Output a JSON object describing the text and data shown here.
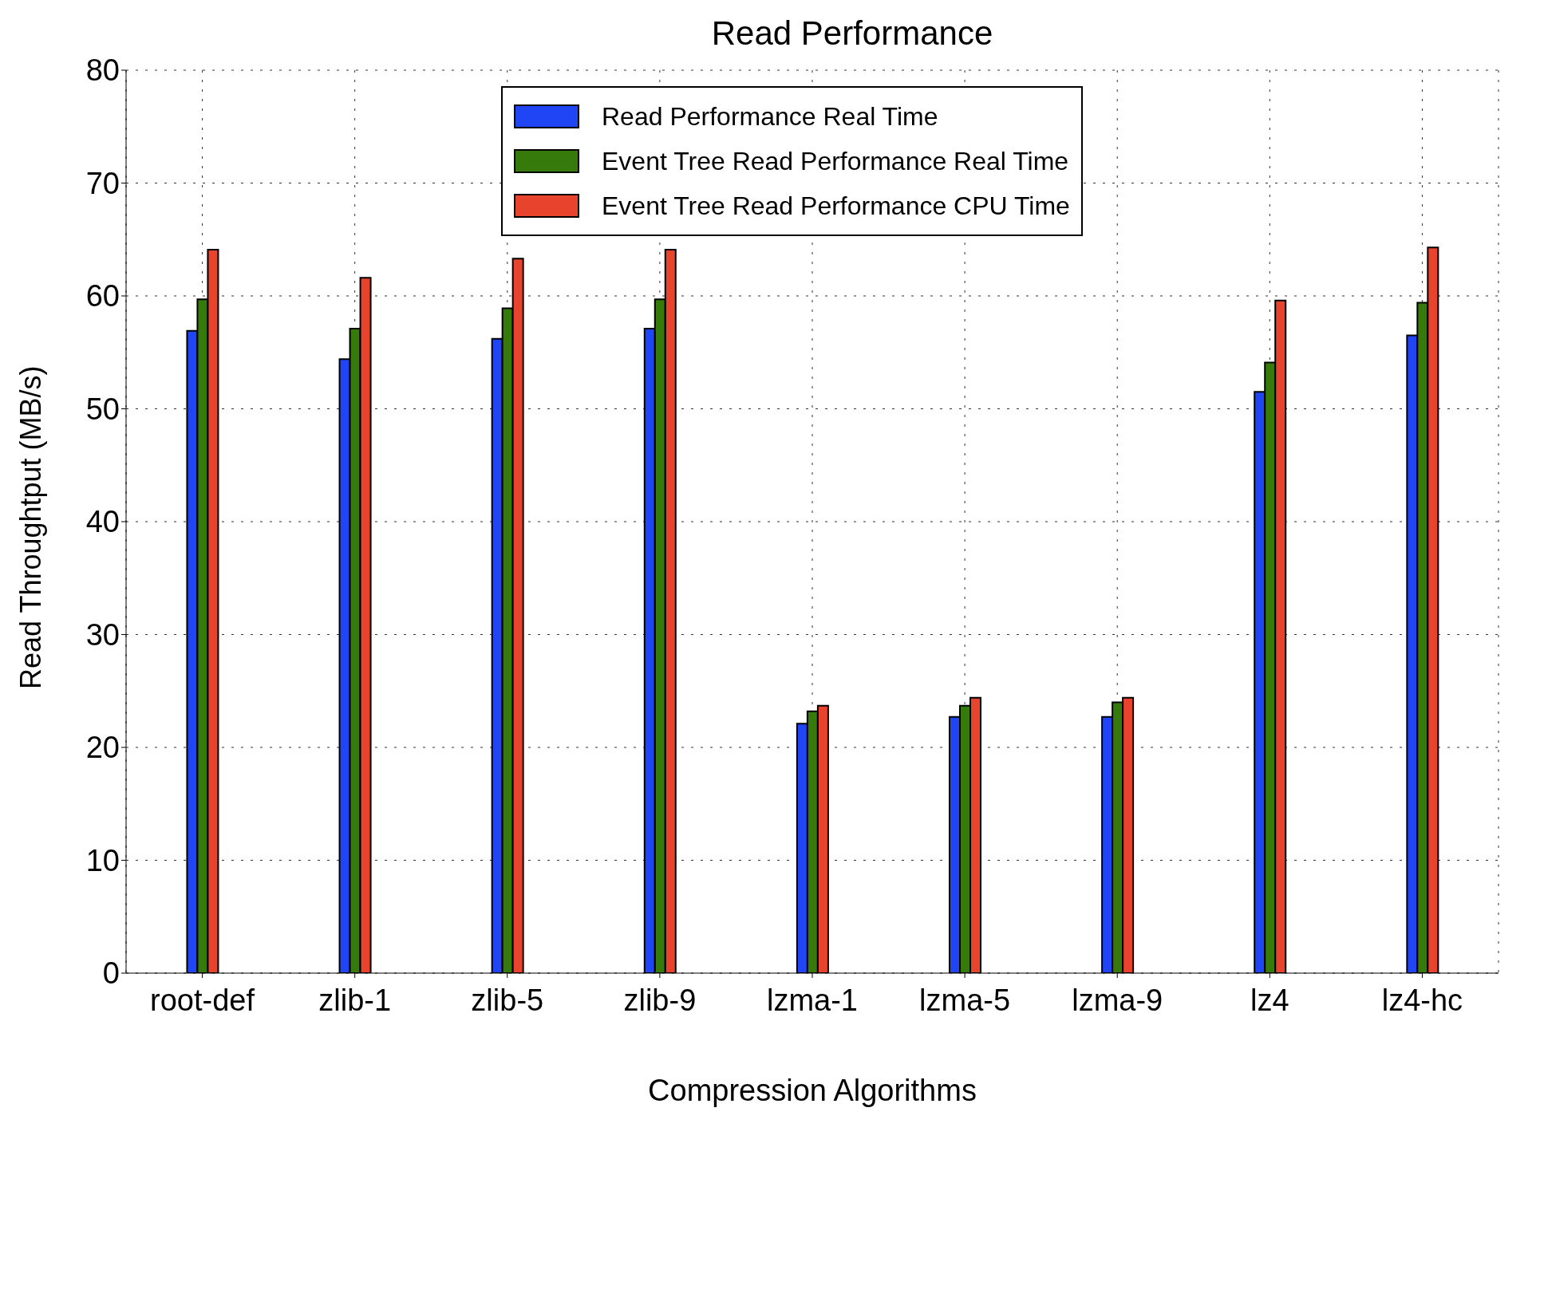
{
  "chart_data": {
    "type": "bar",
    "title": "Read Performance",
    "xlabel": "Compression Algorithms",
    "ylabel": "Read Throughtput (MB/s)",
    "categories": [
      "root-def",
      "zlib-1",
      "zlib-5",
      "zlib-9",
      "lzma-1",
      "lzma-5",
      "lzma-9",
      "lz4",
      "lz4-hc"
    ],
    "series": [
      {
        "name": "Read Performance Real Time",
        "color": "#1f45f5",
        "values": [
          56.9,
          54.4,
          56.2,
          57.1,
          22.1,
          22.7,
          22.7,
          51.5,
          56.5
        ]
      },
      {
        "name": "Event Tree Read Performance Real Time",
        "color": "#357a0a",
        "values": [
          59.7,
          57.1,
          58.9,
          59.7,
          23.2,
          23.7,
          24.0,
          54.1,
          59.4
        ]
      },
      {
        "name": "Event Tree Read Performance CPU Time",
        "color": "#e8432c",
        "values": [
          64.1,
          61.6,
          63.3,
          64.1,
          23.7,
          24.4,
          24.4,
          59.6,
          64.3
        ]
      }
    ],
    "ylim": [
      0,
      80
    ],
    "yticks": [
      0,
      10,
      20,
      30,
      40,
      50,
      60,
      70,
      80
    ],
    "grid": true,
    "legend": "top"
  }
}
